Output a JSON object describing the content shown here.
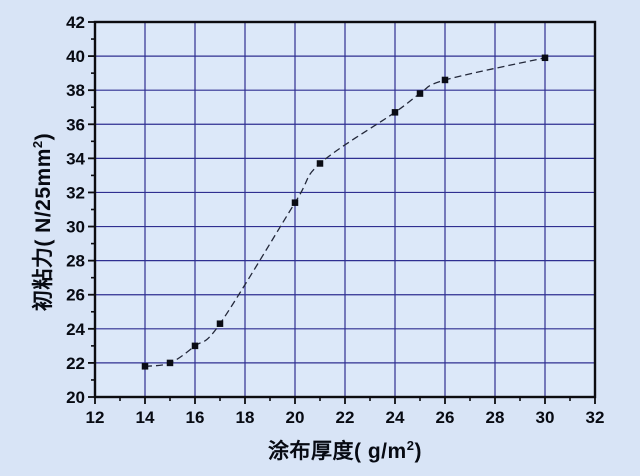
{
  "chart_data": {
    "type": "line",
    "title": "",
    "x_axis": {
      "label_main": "涂布厚度( g/m",
      "label_sup": "2",
      "label_close": ")",
      "lim": [
        12,
        32
      ],
      "major_ticks": [
        12,
        14,
        16,
        18,
        20,
        22,
        24,
        26,
        28,
        30,
        32
      ],
      "minor_ticks": [
        13,
        15,
        17,
        19,
        21,
        23,
        25,
        27,
        29,
        31
      ]
    },
    "y_axis": {
      "label_main": "初粘力( N/25mm",
      "label_sup": "2",
      "label_close": ")",
      "lim": [
        20,
        42
      ],
      "major_ticks": [
        20,
        22,
        24,
        26,
        28,
        30,
        32,
        34,
        36,
        38,
        40,
        42
      ],
      "minor_ticks": [
        21,
        23,
        25,
        27,
        29,
        31,
        33,
        35,
        37,
        39,
        41
      ]
    },
    "series": [
      {
        "name": "initial-tack-vs-coating-weight",
        "x": [
          14,
          15,
          16,
          17,
          20,
          21,
          24,
          25,
          26,
          30
        ],
        "y": [
          21.8,
          22.0,
          23.0,
          24.3,
          31.4,
          33.7,
          36.7,
          37.8,
          38.6,
          39.9
        ],
        "marker": "square",
        "line_style": "dashed"
      }
    ],
    "grid": true,
    "legend": null,
    "colors": {
      "background": "#d8e4f6",
      "plot_background": "#dce8f9",
      "grid": "#2f2f91",
      "axis": "#0c0c10",
      "line": "#23283a",
      "marker": "#0a0c14",
      "text": "#070a12"
    }
  }
}
